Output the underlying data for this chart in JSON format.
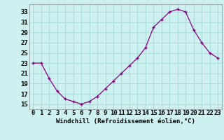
{
  "x": [
    0,
    1,
    2,
    3,
    4,
    5,
    6,
    7,
    8,
    9,
    10,
    11,
    12,
    13,
    14,
    15,
    16,
    17,
    18,
    19,
    20,
    21,
    22,
    23
  ],
  "y": [
    23,
    23,
    20,
    17.5,
    16,
    15.5,
    15,
    15.5,
    16.5,
    18,
    19.5,
    21,
    22.5,
    24,
    26,
    30,
    31.5,
    33,
    33.5,
    33,
    29.5,
    27,
    25,
    24
  ],
  "line_color": "#800080",
  "marker": "+",
  "bg_color": "#cff0f0",
  "grid_color": "#a8dada",
  "xlabel": "Windchill (Refroidissement éolien,°C)",
  "yticks": [
    15,
    17,
    19,
    21,
    23,
    25,
    27,
    29,
    31,
    33
  ],
  "ylim": [
    14,
    34.5
  ],
  "xlim": [
    -0.5,
    23.5
  ],
  "xticks": [
    0,
    1,
    2,
    3,
    4,
    5,
    6,
    7,
    8,
    9,
    10,
    11,
    12,
    13,
    14,
    15,
    16,
    17,
    18,
    19,
    20,
    21,
    22,
    23
  ],
  "font_size": 6.5,
  "xlabel_fontsize": 6.5
}
